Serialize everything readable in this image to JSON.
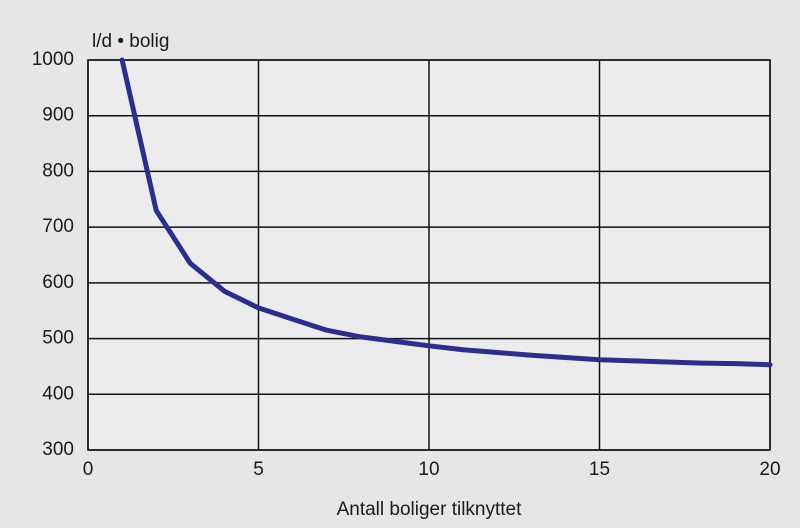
{
  "chart_data": {
    "type": "line",
    "y_label": "l/d • bolig",
    "x_label": "Antall boliger tilknyttet",
    "x": [
      1,
      2,
      3,
      4,
      5,
      6,
      7,
      8,
      9,
      10,
      11,
      12,
      13,
      14,
      15,
      16,
      17,
      18,
      19,
      20
    ],
    "series": [
      {
        "name": null,
        "color": "#2b2f8a",
        "values": [
          1000,
          730,
          635,
          585,
          555,
          535,
          515,
          503,
          495,
          487,
          480,
          475,
          470,
          466,
          462,
          460,
          458,
          456,
          455,
          453
        ]
      }
    ],
    "xlim": [
      0,
      20
    ],
    "xticks": [
      0,
      5,
      10,
      15,
      20
    ],
    "ylim": [
      300,
      1000
    ],
    "yticks": [
      300,
      400,
      500,
      600,
      700,
      800,
      900,
      1000
    ],
    "grid": true
  }
}
